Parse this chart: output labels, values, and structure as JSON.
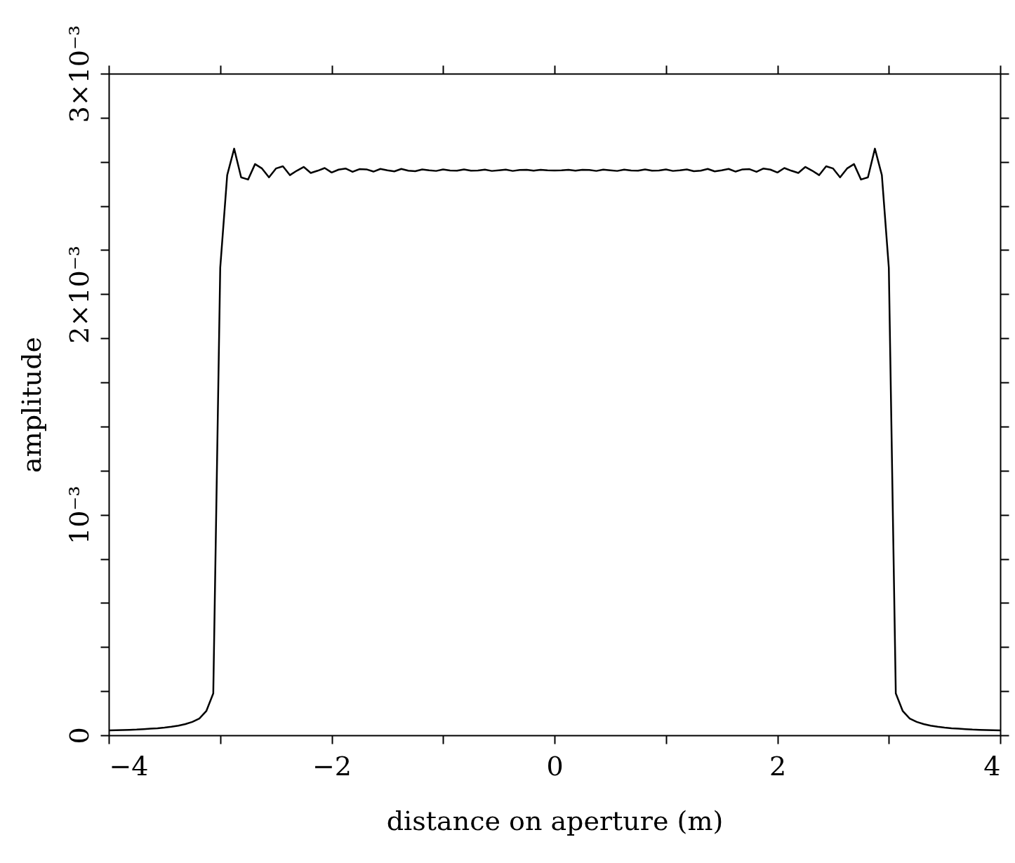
{
  "chart_data": {
    "type": "line",
    "xlabel": "distance on aperture (m)",
    "ylabel": "amplitude",
    "xlim": [
      -4,
      4
    ],
    "ylim": [
      0,
      0.003
    ],
    "xticks": [
      -4,
      {
        "value": -3,
        "label": null
      },
      -2,
      {
        "value": -1,
        "label": null
      },
      0,
      {
        "value": 1,
        "label": null
      },
      2,
      {
        "value": 3,
        "label": null
      },
      4
    ],
    "yticks": [
      0,
      {
        "value": 0.0002,
        "label": null
      },
      {
        "value": 0.0004,
        "label": null
      },
      {
        "value": 0.0006,
        "label": null
      },
      {
        "value": 0.0008,
        "label": null
      },
      {
        "value": 0.001,
        "label": "10⁻³"
      },
      {
        "value": 0.0012,
        "label": null
      },
      {
        "value": 0.0014,
        "label": null
      },
      {
        "value": 0.0016,
        "label": null
      },
      {
        "value": 0.0018,
        "label": null
      },
      {
        "value": 0.002,
        "label": "2×10⁻³"
      },
      {
        "value": 0.0022,
        "label": null
      },
      {
        "value": 0.0024,
        "label": null
      },
      {
        "value": 0.0026,
        "label": null
      },
      {
        "value": 0.0028,
        "label": null
      },
      {
        "value": 0.003,
        "label": "3×10⁻³"
      }
    ],
    "grid": false,
    "marker": "none",
    "line_style": "solid",
    "series": [
      {
        "color": "#000000",
        "x": [
          -4,
          -3.9375,
          -3.875,
          -3.8125,
          -3.75,
          -3.6875,
          -3.625,
          -3.5625,
          -3.5,
          -3.4375,
          -3.375,
          -3.3125,
          -3.25,
          -3.1875,
          -3.125,
          -3.0625,
          -3,
          -2.9375,
          -2.875,
          -2.8125,
          -2.75,
          -2.6875,
          -2.625,
          -2.5625,
          -2.5,
          -2.4375,
          -2.375,
          -2.3125,
          -2.25,
          -2.1875,
          -2.125,
          -2.0625,
          -2,
          -1.9375,
          -1.875,
          -1.8125,
          -1.75,
          -1.6875,
          -1.625,
          -1.5625,
          -1.5,
          -1.4375,
          -1.375,
          -1.3125,
          -1.25,
          -1.1875,
          -1.125,
          -1.0625,
          -1,
          -0.9375,
          -0.875,
          -0.8125,
          -0.75,
          -0.6875,
          -0.625,
          -0.5625,
          -0.5,
          -0.4375,
          -0.375,
          -0.3125,
          -0.25,
          -0.1875,
          -0.125,
          -0.0625,
          0,
          0.0625,
          0.125,
          0.1875,
          0.25,
          0.3125,
          0.375,
          0.4375,
          0.5,
          0.5625,
          0.625,
          0.6875,
          0.75,
          0.8125,
          0.875,
          0.9375,
          1,
          1.0625,
          1.125,
          1.1875,
          1.25,
          1.3125,
          1.375,
          1.4375,
          1.5,
          1.5625,
          1.625,
          1.6875,
          1.75,
          1.8125,
          1.875,
          1.9375,
          2,
          2.0625,
          2.125,
          2.1875,
          2.25,
          2.3125,
          2.375,
          2.4375,
          2.5,
          2.5625,
          2.625,
          2.6875,
          2.75,
          2.8125,
          2.875,
          2.9375,
          3,
          3.0625,
          3.125,
          3.1875,
          3.25,
          3.3125,
          3.375,
          3.4375,
          3.5,
          3.5625,
          3.625,
          3.6875,
          3.75,
          3.8125,
          3.875,
          3.9375,
          4
        ],
        "values": [
          2.2e-05,
          2.3e-05,
          2.4e-05,
          2.5e-05,
          2.6e-05,
          2.8e-05,
          3e-05,
          3.2e-05,
          3.5e-05,
          3.9e-05,
          4.4e-05,
          5.1e-05,
          6.1e-05,
          7.6e-05,
          0.00011,
          0.00019,
          0.00212,
          0.00254,
          0.00266,
          0.00253,
          0.00252,
          0.00259,
          0.00257,
          0.00253,
          0.00257,
          0.00258,
          0.00254,
          0.00256,
          0.002577,
          0.00255,
          0.00256,
          0.002572,
          0.002552,
          0.002565,
          0.00257,
          0.002555,
          0.002567,
          0.002566,
          0.002556,
          0.002568,
          0.002562,
          0.002557,
          0.002568,
          0.00256,
          0.002558,
          0.002566,
          0.002562,
          0.002559,
          0.002566,
          0.002561,
          0.00256,
          0.002566,
          0.00256,
          0.002561,
          0.002565,
          0.002559,
          0.002562,
          0.002565,
          0.002559,
          0.002563,
          0.002564,
          0.00256,
          0.002564,
          0.002562,
          0.002561,
          0.002562,
          0.002564,
          0.00256,
          0.002564,
          0.002563,
          0.002559,
          0.002565,
          0.002562,
          0.002559,
          0.002565,
          0.002561,
          0.00256,
          0.002566,
          0.00256,
          0.002561,
          0.002566,
          0.002559,
          0.002562,
          0.002566,
          0.002558,
          0.00256,
          0.002568,
          0.002557,
          0.002562,
          0.002568,
          0.002556,
          0.002566,
          0.002567,
          0.002555,
          0.00257,
          0.002565,
          0.002552,
          0.002572,
          0.00256,
          0.00255,
          0.002577,
          0.00256,
          0.00254,
          0.00258,
          0.00257,
          0.00253,
          0.00257,
          0.00259,
          0.00252,
          0.00253,
          0.00266,
          0.00254,
          0.00212,
          0.00019,
          0.00011,
          7.6e-05,
          6.1e-05,
          5.1e-05,
          4.4e-05,
          3.9e-05,
          3.5e-05,
          3.2e-05,
          3e-05,
          2.8e-05,
          2.6e-05,
          2.5e-05,
          2.4e-05,
          2.3e-05,
          2.2e-05
        ]
      }
    ]
  }
}
